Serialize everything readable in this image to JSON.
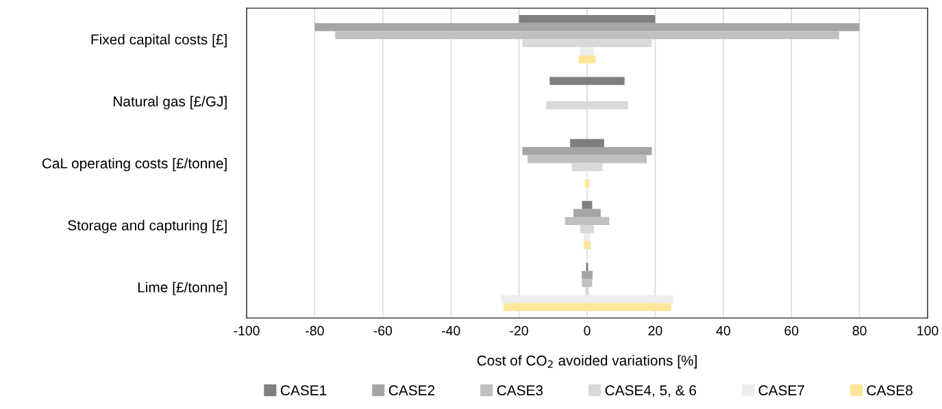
{
  "chart_data": {
    "type": "bar",
    "orientation": "horizontal",
    "xlabel": "Cost of CO$_{2}$ avoided variations [%]",
    "categories": [
      "Fixed capital costs [£]",
      "Natural gas [£/GJ]",
      "CaL operating costs [£/tonne]",
      "Storage and capturing [£]",
      "Lime [£/tonne]"
    ],
    "series": [
      {
        "name": "CASE1",
        "color": "#7f7f7f",
        "base": [
          -20,
          -11,
          -5,
          -1.5,
          -0.3
        ],
        "values": [
          40,
          22,
          10,
          3,
          0.6
        ]
      },
      {
        "name": "CASE2",
        "color": "#a5a5a5",
        "base": [
          -80,
          null,
          -19,
          -4,
          -1.6
        ],
        "values": [
          160,
          null,
          38,
          8,
          3.2
        ]
      },
      {
        "name": "CASE3",
        "color": "#bfbfbf",
        "base": [
          -74,
          null,
          -17.5,
          -6.5,
          -1.5
        ],
        "values": [
          148,
          null,
          35,
          13,
          3
        ]
      },
      {
        "name": "CASE4, 5, & 6",
        "color": "#d9d9d9",
        "base": [
          -19,
          -12,
          -4.5,
          -2,
          -0.5
        ],
        "values": [
          38,
          24,
          9,
          4,
          1
        ]
      },
      {
        "name": "CASE7",
        "color": "#ededed",
        "base": [
          -2,
          null,
          -0.3,
          -1,
          -25.3
        ],
        "values": [
          4,
          null,
          0.6,
          2,
          50.6
        ]
      },
      {
        "name": "CASE8",
        "color": "#ffe699",
        "base": [
          -2.5,
          null,
          -0.7,
          -1,
          -24.6
        ],
        "values": [
          5,
          null,
          1.4,
          2,
          49.2
        ]
      }
    ],
    "xlim": [
      -100,
      100
    ],
    "xticks": [
      -100,
      -80,
      -60,
      -40,
      -20,
      0,
      20,
      40,
      60,
      80,
      100
    ],
    "grid": "x",
    "legend": "bottom"
  }
}
